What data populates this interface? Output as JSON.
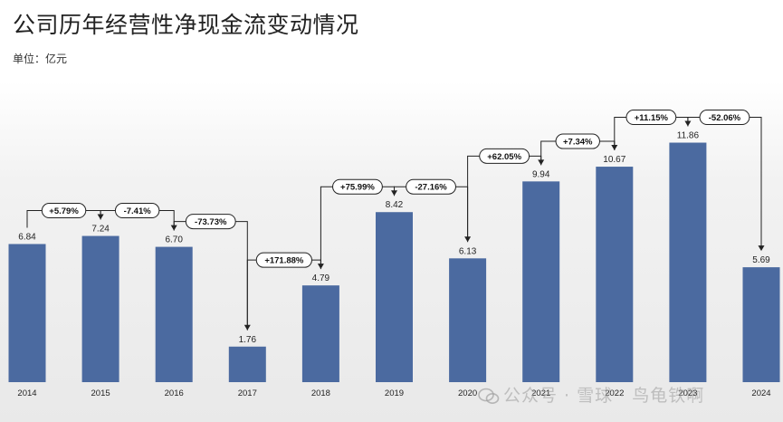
{
  "title": "公司历年经营性净现金流变动情况",
  "unit_label": "单位：亿元",
  "watermark": "公众号 · 雪球 · 鸟龟铁啊",
  "colors": {
    "bar": "#4b6aa0",
    "text": "#222222"
  },
  "chart_data": {
    "type": "bar",
    "title": "公司历年经营性净现金流变动情况",
    "ylabel": "",
    "xlabel": "",
    "unit": "亿元",
    "categories": [
      "2014",
      "2015",
      "2016",
      "2017",
      "2018",
      "2019",
      "2020",
      "2021",
      "2022",
      "2023",
      "2024"
    ],
    "values": [
      6.84,
      7.24,
      6.7,
      1.76,
      4.79,
      8.42,
      6.13,
      9.94,
      10.67,
      11.86,
      5.69
    ],
    "value_labels": [
      "6.84",
      "7.24",
      "6.70",
      "1.76",
      "4.79",
      "8.42",
      "6.13",
      "9.94",
      "10.67",
      "11.86",
      "5.69"
    ],
    "changes": [
      "+5.79%",
      "-7.41%",
      "-73.73%",
      "+171.88%",
      "+75.99%",
      "-27.16%",
      "+62.05%",
      "+7.34%",
      "+11.15%",
      "-52.06%"
    ],
    "ylim": [
      0,
      14
    ],
    "grid": false,
    "legend": "none"
  }
}
